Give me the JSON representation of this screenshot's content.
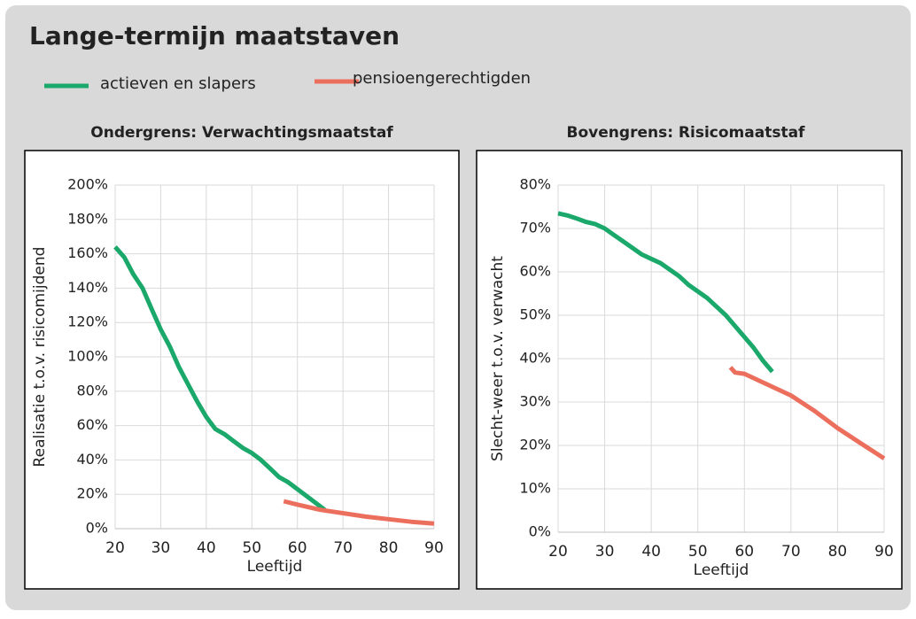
{
  "title": "Lange-termijn maatstaven",
  "chart_data": [
    {
      "type": "line",
      "title": "Ondergrens: Verwachtingsmaatstaf",
      "xlabel": "Leeftijd",
      "ylabel": "Realisatie t.o.v. risicomijdend",
      "xlim": [
        20,
        90
      ],
      "xticks": [
        20,
        30,
        40,
        50,
        60,
        70,
        80,
        90
      ],
      "ylim": [
        0,
        200
      ],
      "yticks": [
        {
          "value": 0,
          "label": "0%"
        },
        {
          "value": 20,
          "label": "20%"
        },
        {
          "value": 40,
          "label": "40%"
        },
        {
          "value": 60,
          "label": "60%"
        },
        {
          "value": 80,
          "label": "80%"
        },
        {
          "value": 100,
          "label": "100%"
        },
        {
          "value": 120,
          "label": "120%"
        },
        {
          "value": 140,
          "label": "140%"
        },
        {
          "value": 160,
          "label": "160%"
        },
        {
          "value": 180,
          "label": "180%"
        },
        {
          "value": 200,
          "label": "200%"
        }
      ],
      "grid": true,
      "series": [
        {
          "name": "actieven en slapers",
          "color": "#1aa86b",
          "x": [
            20,
            22,
            24,
            26,
            28,
            30,
            32,
            34,
            36,
            38,
            40,
            42,
            44,
            46,
            48,
            50,
            52,
            54,
            56,
            58,
            60,
            62,
            64,
            66
          ],
          "values": [
            164,
            158,
            148,
            140,
            128,
            116,
            106,
            94,
            84,
            74,
            65,
            58,
            55,
            51,
            47,
            44,
            40,
            35,
            30,
            27,
            23,
            19,
            15,
            11
          ]
        },
        {
          "name": "pensioengerechtigden",
          "color": "#ec6f5e",
          "x": [
            57,
            60,
            65,
            70,
            75,
            80,
            85,
            90
          ],
          "values": [
            16,
            14,
            11,
            9,
            7,
            5.5,
            4,
            3
          ]
        }
      ]
    },
    {
      "type": "line",
      "title": "Bovengrens: Risicomaatstaf",
      "xlabel": "Leeftijd",
      "ylabel": "Slecht-weer t.o.v. verwacht",
      "xlim": [
        20,
        90
      ],
      "xticks": [
        20,
        30,
        40,
        50,
        60,
        70,
        80,
        90
      ],
      "ylim": [
        0,
        80
      ],
      "yticks": [
        {
          "value": 0,
          "label": "0%"
        },
        {
          "value": 10,
          "label": "10%"
        },
        {
          "value": 20,
          "label": "20%"
        },
        {
          "value": 30,
          "label": "30%"
        },
        {
          "value": 40,
          "label": "40%"
        },
        {
          "value": 50,
          "label": "50%"
        },
        {
          "value": 60,
          "label": "60%"
        },
        {
          "value": 70,
          "label": "70%"
        },
        {
          "value": 80,
          "label": "80%"
        }
      ],
      "grid": true,
      "series": [
        {
          "color": "#1aa86b",
          "x": [
            20,
            22,
            24,
            26,
            28,
            30,
            32,
            34,
            36,
            38,
            40,
            42,
            44,
            46,
            48,
            50,
            52,
            54,
            56,
            58,
            60,
            62,
            64,
            66
          ],
          "values": [
            73.5,
            73,
            72.3,
            71.5,
            71,
            70,
            68.5,
            67,
            65.5,
            64,
            63,
            62,
            60.5,
            59,
            57,
            55.5,
            54,
            52,
            50,
            47.5,
            45,
            42.5,
            39.5,
            37
          ]
        },
        {
          "color": "#ec6f5e",
          "x": [
            57,
            58,
            60,
            65,
            70,
            75,
            80,
            85,
            90
          ],
          "values": [
            38,
            36.8,
            36.5,
            34,
            31.5,
            28,
            24,
            20.5,
            17
          ]
        }
      ]
    }
  ]
}
